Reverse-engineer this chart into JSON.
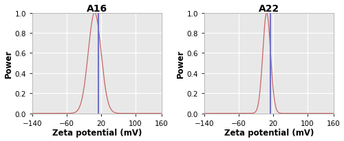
{
  "titles": [
    "A16",
    "A22"
  ],
  "xlabel": "Zeta potential (mV)",
  "ylabel": "Power",
  "xlim": [
    -140,
    160
  ],
  "ylim": [
    0,
    1.0
  ],
  "xticks": [
    -140,
    -60,
    20,
    100,
    160
  ],
  "yticks": [
    0.0,
    0.2,
    0.4,
    0.6,
    0.8,
    1.0
  ],
  "red_peak_A16": 5,
  "red_peak_A22": 5,
  "blue_line_x": 14,
  "red_sigma_A16": 15,
  "red_sigma_A22": 9,
  "red_color": "#c86464",
  "blue_color": "#7070c8",
  "bg_color": "#e8e8e8",
  "grid_color": "#ffffff",
  "title_fontsize": 10,
  "label_fontsize": 8.5,
  "tick_fontsize": 7.5,
  "figsize": [
    5.0,
    2.07
  ],
  "dpi": 100
}
